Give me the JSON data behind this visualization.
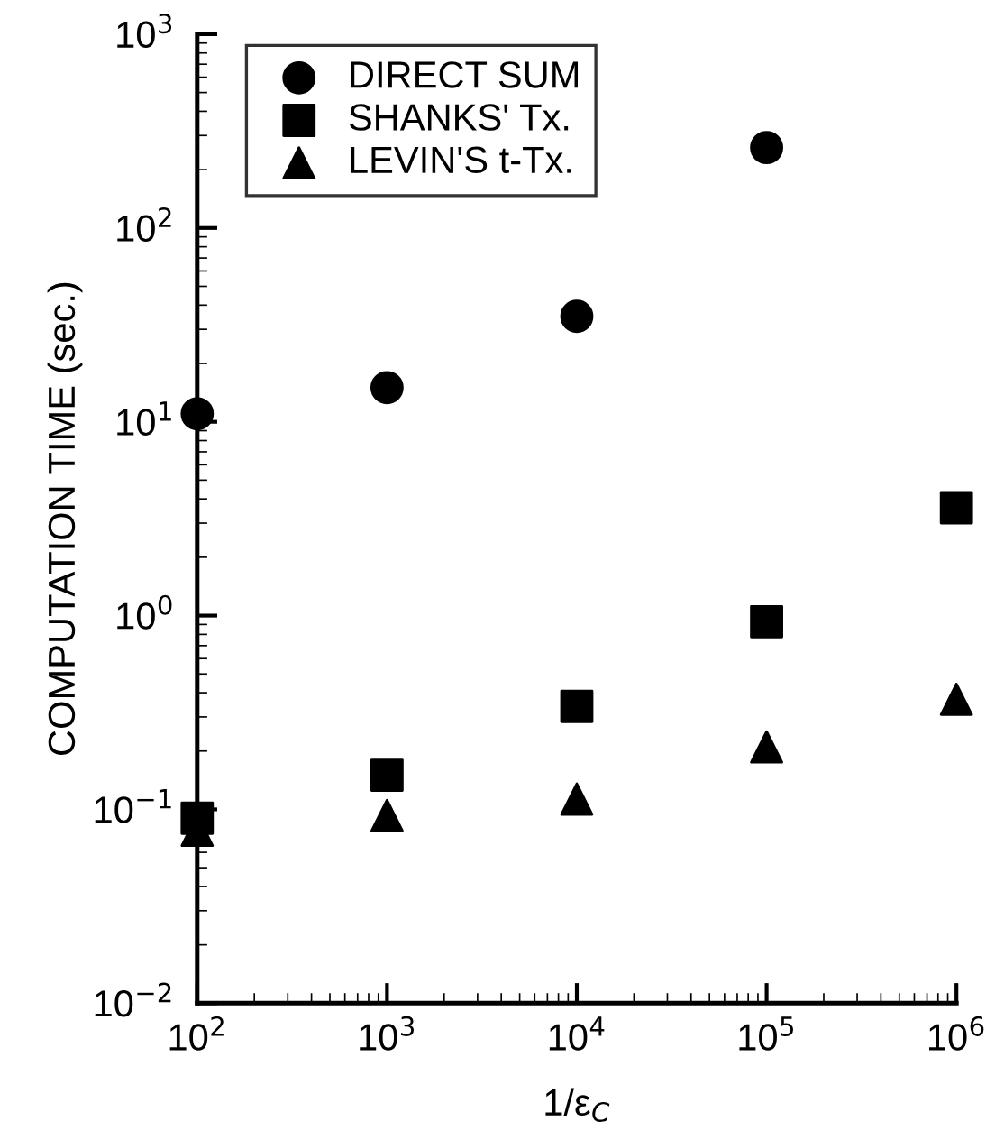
{
  "chart_data": {
    "type": "scatter",
    "xlabel": "1/ε$_{C}$",
    "ylabel": "COMPUTATION TIME (sec.)",
    "log": "xy",
    "x": [
      100,
      1000,
      10000,
      100000,
      1000000
    ],
    "xlim": [
      100,
      1000000
    ],
    "ylim": [
      0.01,
      1000
    ],
    "xticks": [
      {
        "value": 100,
        "label": "10$^{2}$"
      },
      {
        "value": 1000,
        "label": "10$^{3}$"
      },
      {
        "value": 10000,
        "label": "10$^{4}$"
      },
      {
        "value": 100000,
        "label": "10$^{5}$"
      },
      {
        "value": 1000000,
        "label": "10$^{6}$"
      }
    ],
    "yticks": [
      {
        "value": 0.01,
        "label": "10$^{−2}$"
      },
      {
        "value": 0.1,
        "label": "10$^{−1}$"
      },
      {
        "value": 1,
        "label": "10$^{0}$"
      },
      {
        "value": 10,
        "label": "10$^{1}$"
      },
      {
        "value": 100,
        "label": "10$^{2}$"
      },
      {
        "value": 1000,
        "label": "10$^{3}$"
      }
    ],
    "legend": "top left",
    "grid": false,
    "series": [
      {
        "name": "DIRECT SUM",
        "color": "#000000",
        "marker": "circle",
        "values": [
          11,
          15,
          35,
          260,
          null
        ]
      },
      {
        "name": "SHANKS' Tx.",
        "color": "#000000",
        "marker": "square",
        "values": [
          0.09,
          0.15,
          0.34,
          0.93,
          3.6
        ]
      },
      {
        "name": "LEVIN'S t-Tx.",
        "color": "#000000",
        "marker": "triangle",
        "values": [
          0.078,
          0.093,
          0.113,
          0.21,
          0.37
        ]
      }
    ]
  }
}
